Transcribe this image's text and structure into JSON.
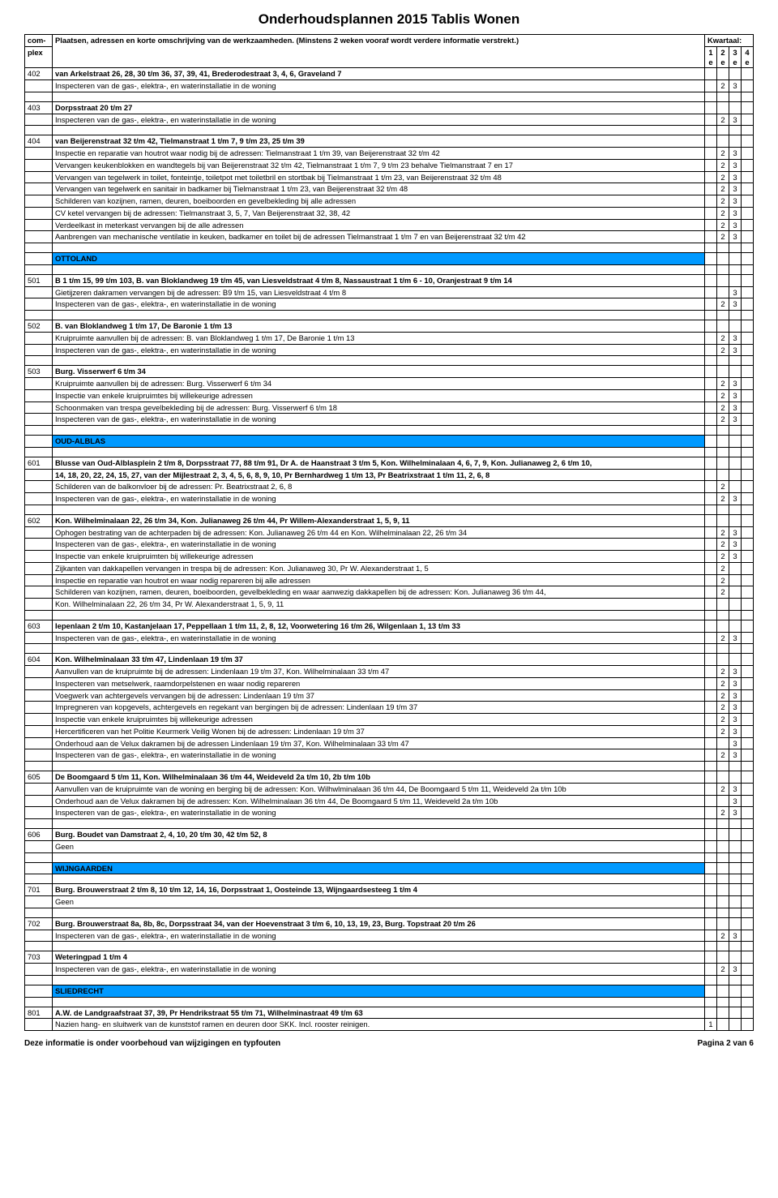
{
  "pageTitle": "Onderhoudsplannen 2015 Tablis Wonen",
  "header": {
    "col1_l1": "com-",
    "col1_l2": "plex",
    "col2": "Plaatsen, adressen en korte omschrijving van de werkzaamheden. (Minstens 2 weken vooraf wordt verdere informatie verstrekt.)",
    "kw": "Kwartaal:",
    "q1": "1e",
    "q2": "2e",
    "q3": "3e",
    "q4": "4e"
  },
  "footerLeft": "Deze informatie is onder voorbehoud van wijzigingen en typfouten",
  "footerRight": "Pagina 2 van 6",
  "sections": {
    "ottoland": "OTTOLAND",
    "oudalblas": "OUD-ALBLAS",
    "wijngaarden": "WIJNGAARDEN",
    "sliedrecht": "SLIEDRECHT"
  },
  "rows": {
    "r402h": {
      "id": "402",
      "t": "van Arkelstraat 26, 28, 30 t/m 36, 37, 39, 41, Brederodestraat 3, 4, 6, Graveland 7",
      "b": true
    },
    "r402a": {
      "t": "Inspecteren van de gas-, elektra-, en waterinstallatie in de woning",
      "q2": "2",
      "q3": "3"
    },
    "r403h": {
      "id": "403",
      "t": "Dorpsstraat 20 t/m 27",
      "b": true
    },
    "r403a": {
      "t": "Inspecteren van de gas-, elektra-, en waterinstallatie in de woning",
      "q2": "2",
      "q3": "3"
    },
    "r404h": {
      "id": "404",
      "t": "van Beijerenstraat 32 t/m 42, Tielmanstraat 1 t/m 7, 9 t/m 23, 25 t/m 39",
      "b": true
    },
    "r404a": {
      "t": "Inspectie en reparatie van houtrot waar nodig bij de adressen: Tielmanstraat 1 t/m 39, van Beijerenstraat 32 t/m 42",
      "q2": "2",
      "q3": "3"
    },
    "r404b": {
      "t": "Vervangen keukenblokken en wandtegels bij van Beijerenstraat 32 t/m 42, Tielmanstraat 1 t/m 7, 9 t/m 23 behalve Tielmanstraat 7 en 17",
      "q2": "2",
      "q3": "3"
    },
    "r404c": {
      "t": "Vervangen van tegelwerk in toilet, fonteintje, toiletpot met toiletbril en stortbak bij Tielmanstraat 1 t/m 23, van Beijerenstraat 32 t/m 48",
      "q2": "2",
      "q3": "3"
    },
    "r404d": {
      "t": "Vervangen van tegelwerk en sanitair in badkamer bij Tielmanstraat 1 t/m 23, van Beijerenstraat 32 t/m 48",
      "q2": "2",
      "q3": "3"
    },
    "r404e": {
      "t": "Schilderen van kozijnen, ramen, deuren, boeiboorden en gevelbekleding bij alle adressen",
      "q2": "2",
      "q3": "3"
    },
    "r404f": {
      "t": "CV ketel vervangen bij de adressen: Tielmanstraat 3, 5, 7, Van Beijerenstraat 32, 38, 42",
      "q2": "2",
      "q3": "3"
    },
    "r404g": {
      "t": "Verdeelkast in meterkast vervangen bij de alle adressen",
      "q2": "2",
      "q3": "3"
    },
    "r404i": {
      "t": "Aanbrengen van mechanische ventilatie in keuken, badkamer en toilet bij de adressen Tielmanstraat 1 t/m 7 en van Beijerenstraat 32 t/m 42",
      "q2": "2",
      "q3": "3"
    },
    "r501h": {
      "id": "501",
      "t": "B 1 t/m 15, 99 t/m 103, B. van Bloklandweg 19 t/m 45, van Liesveldstraat 4 t/m 8, Nassaustraat 1 t/m 6 - 10, Oranjestraat 9 t/m 14",
      "b": true
    },
    "r501a": {
      "t": "Gietijzeren dakramen vervangen bij de adressen: B9 t/m 15, van Liesveldstraat 4 t/m 8",
      "q3": "3"
    },
    "r501b": {
      "t": "Inspecteren van de gas-, elektra-, en waterinstallatie in de woning",
      "q2": "2",
      "q3": "3"
    },
    "r502h": {
      "id": "502",
      "t": "B. van Bloklandweg 1 t/m 17, De Baronie 1 t/m 13",
      "b": true
    },
    "r502a": {
      "t": "Kruipruimte aanvullen bij de adressen: B. van Bloklandweg 1 t/m 17, De Baronie 1 t/m 13",
      "q2": "2",
      "q3": "3"
    },
    "r502b": {
      "t": "Inspecteren van de gas-, elektra-, en waterinstallatie in de woning",
      "q2": "2",
      "q3": "3"
    },
    "r503h": {
      "id": "503",
      "t": "Burg. Visserwerf 6 t/m 34",
      "b": true
    },
    "r503a": {
      "t": "Kruipruimte aanvullen bij de adressen: Burg. Visserwerf 6 t/m 34",
      "q2": "2",
      "q3": "3"
    },
    "r503b": {
      "t": "Inspectie van enkele kruipruimtes bij willekeurige adressen",
      "q2": "2",
      "q3": "3"
    },
    "r503c": {
      "t": "Schoonmaken van trespa gevelbekleding bij de adressen: Burg. Visserwerf 6 t/m 18",
      "q2": "2",
      "q3": "3"
    },
    "r503d": {
      "t": "Inspecteren van de gas-, elektra-, en waterinstallatie in de woning",
      "q2": "2",
      "q3": "3"
    },
    "r601h": {
      "id": "601",
      "t": "Blusse van Oud-Alblasplein 2 t/m 8,  Dorpsstraat 77, 88 t/m 91, Dr A. de Haanstraat 3 t/m 5, Kon. Wilhelminalaan 4, 6, 7, 9, Kon. Julianaweg 2, 6 t/m 10,",
      "b": true
    },
    "r601h2": {
      "t": " 14, 18, 20, 22, 24, 15, 27, van der Mijlestraat 2, 3, 4, 5, 6, 8, 9, 10, Pr Bernhardweg 1 t/m 13, Pr Beatrixstraat 1 t/m 11, 2, 6, 8",
      "b": true
    },
    "r601a": {
      "t": "Schilderen van de balkonvloer bij de adressen: Pr. Beatrixstraat 2, 6, 8",
      "q2": "2"
    },
    "r601b": {
      "t": "Inspecteren van de gas-, elektra-, en waterinstallatie in de woning",
      "q2": "2",
      "q3": "3"
    },
    "r602h": {
      "id": "602",
      "t": "Kon. Wilhelminalaan 22, 26 t/m 34, Kon. Julianaweg 26 t/m 44, Pr Willem-Alexanderstraat 1, 5, 9, 11",
      "b": true
    },
    "r602a": {
      "t": "Ophogen bestrating van de achterpaden bij de adressen: Kon. Julianaweg 26 t/m 44 en Kon. Wilhelminalaan 22, 26 t/m 34",
      "q2": "2",
      "q3": "3"
    },
    "r602b": {
      "t": "Inspecteren van de gas-, elektra-, en waterinstallatie in de woning",
      "q2": "2",
      "q3": "3"
    },
    "r602c": {
      "t": "Inspectie van enkele kruipruimten bij willekeurige adressen",
      "q2": "2",
      "q3": "3"
    },
    "r602d": {
      "t": "Zijkanten van dakkapellen vervangen in trespa bij de adressen: Kon. Julianaweg 30, Pr W. Alexanderstraat 1, 5",
      "q2": "2"
    },
    "r602e": {
      "t": "Inspectie en reparatie van houtrot en waar nodig repareren bij alle adressen",
      "q2": "2"
    },
    "r602f": {
      "t": "Schilderen van kozijnen, ramen, deuren, boeiboorden, gevelbekleding en waar aanwezig dakkapellen bij de adressen: Kon. Julianaweg 36 t/m 44,",
      "q2": "2"
    },
    "r602g": {
      "t": "Kon. Wilhelminalaan 22, 26 t/m 34, Pr W. Alexanderstraat 1, 5, 9, 11"
    },
    "r603h": {
      "id": "603",
      "t": "Iepenlaan 2 t/m 10, Kastanjelaan 17, Peppellaan 1 t/m 11, 2, 8, 12,  Voorwetering 16 t/m 26, Wilgenlaan 1, 13 t/m 33",
      "b": true
    },
    "r603a": {
      "t": "Inspecteren van de gas-, elektra-, en waterinstallatie in de woning",
      "q2": "2",
      "q3": "3"
    },
    "r604h": {
      "id": "604",
      "t": "Kon. Wilhelminalaan 33 t/m 47, Lindenlaan 19 t/m 37",
      "b": true
    },
    "r604a": {
      "t": "Aanvullen van de kruipruimte bij de adressen: Lindenlaan 19 t/m 37, Kon. Wilhelminalaan 33 t/m 47",
      "q2": "2",
      "q3": "3"
    },
    "r604b": {
      "t": "Inspecteren van metselwerk, raamdorpelstenen en waar nodig repareren",
      "q2": "2",
      "q3": "3"
    },
    "r604c": {
      "t": "Voegwerk van achtergevels vervangen bij de adressen: Lindenlaan 19 t/m 37",
      "q2": "2",
      "q3": "3"
    },
    "r604d": {
      "t": "Impregneren van kopgevels, achtergevels en regekant van bergingen bij de adressen: Lindenlaan 19 t/m 37",
      "q2": "2",
      "q3": "3"
    },
    "r604e": {
      "t": "Inspectie van enkele kruipruimtes bij willekeurige adressen",
      "q2": "2",
      "q3": "3"
    },
    "r604f": {
      "t": "Hercertificeren van het Politie Keurmerk Veilig Wonen bij de adressen: Lindenlaan 19 t/m 37",
      "q2": "2",
      "q3": "3"
    },
    "r604g": {
      "t": "Onderhoud aan de Velux dakramen bij de adressen Lindenlaan 19 t/m 37, Kon. Wilhelminalaan 33 t/m 47",
      "q3": "3"
    },
    "r604i": {
      "t": "Inspecteren van de gas-, elektra-, en waterinstallatie in de woning",
      "q2": "2",
      "q3": "3"
    },
    "r605h": {
      "id": "605",
      "t": "De Boomgaard 5 t/m 11, Kon. Wilhelminalaan 36 t/m 44, Weideveld 2a t/m 10, 2b t/m 10b",
      "b": true
    },
    "r605a": {
      "t": "Aanvullen van de kruipruimte van de woning en berging bij de adressen: Kon. Wilhwlminalaan 36 t/m 44, De Boomgaard 5 t/m 11, Weideveld 2a t/m 10b",
      "q2": "2",
      "q3": "3"
    },
    "r605b": {
      "t": "Onderhoud aan de Velux dakramen bij de adressen: Kon. Wilhelminalaan 36 t/m 44, De Boomgaard 5 t/m 11, Weideveld 2a t/m 10b",
      "q3": "3"
    },
    "r605c": {
      "t": "Inspecteren van de gas-, elektra-, en waterinstallatie in de woning",
      "q2": "2",
      "q3": "3"
    },
    "r606h": {
      "id": "606",
      "t": "Burg. Boudet van Damstraat 2, 4, 10, 20 t/m 30, 42 t/m 52, 8",
      "b": true
    },
    "r606a": {
      "t": "Geen"
    },
    "r701h": {
      "id": "701",
      "t": "Burg. Brouwerstraat 2 t/m 8, 10 t/m 12, 14, 16, Dorpsstraat 1, Oosteinde 13, Wijngaardsesteeg 1 t/m 4",
      "b": true
    },
    "r701a": {
      "t": "Geen"
    },
    "r702h": {
      "id": "702",
      "t": "Burg. Brouwerstraat 8a, 8b, 8c, Dorpsstraat 34, van der Hoevenstraat 3 t/m 6, 10, 13, 19, 23, Burg. Topstraat 20 t/m 26",
      "b": true
    },
    "r702a": {
      "t": "Inspecteren van de gas-, elektra-, en waterinstallatie in de woning",
      "q2": "2",
      "q3": "3"
    },
    "r703h": {
      "id": "703",
      "t": "Weteringpad 1 t/m 4",
      "b": true
    },
    "r703a": {
      "t": "Inspecteren van de gas-, elektra-, en waterinstallatie in de woning",
      "q2": "2",
      "q3": "3"
    },
    "r801h": {
      "id": "801",
      "t": "A.W. de Landgraafstraat 37, 39, Pr Hendrikstraat 55 t/m 71, Wilhelminastraat 49 t/m 63",
      "b": true
    },
    "r801a": {
      "t": "Nazien hang- en sluitwerk van de kunststof ramen en deuren door SKK. Incl. rooster reinigen.",
      "q1": "1"
    }
  }
}
